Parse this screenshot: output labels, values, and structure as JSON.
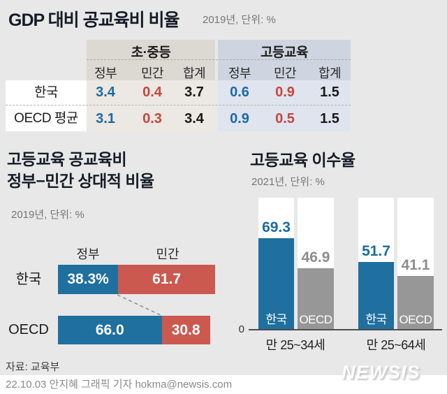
{
  "header": {
    "title": "GDP 대비 공교육비 비율",
    "subtitle": "2019년, 단위: %"
  },
  "table": {
    "groups": [
      {
        "label": "초·중등"
      },
      {
        "label": "고등교육"
      }
    ],
    "subheaders": [
      "정부",
      "민간",
      "합계",
      "정부",
      "민간",
      "합계"
    ],
    "rows": [
      {
        "label": "한국",
        "values": [
          "3.4",
          "0.4",
          "3.7",
          "0.6",
          "0.9",
          "1.5"
        ]
      },
      {
        "label": "OECD 평균",
        "values": [
          "3.1",
          "0.3",
          "3.4",
          "0.9",
          "0.5",
          "1.5"
        ]
      }
    ]
  },
  "left_chart": {
    "title": "고등교육 공교육비\n정부−민간 상대적 비율",
    "subtitle": "2019년, 단위: %",
    "gov_header": "정부",
    "priv_header": "민간",
    "rows": [
      {
        "label": "한국",
        "gov_label": "38.3%",
        "gov_pct": 38.3,
        "priv_label": "61.7",
        "priv_pct": 61.7
      },
      {
        "label": "OECD",
        "gov_label": "66.0",
        "gov_pct": 66.0,
        "priv_label": "30.8",
        "priv_pct": 30.8
      }
    ],
    "source": "자료: 교육부"
  },
  "right_chart": {
    "title": "고등교육 이수율",
    "subtitle": "2021년, 단위: %",
    "zero_label": "0",
    "groups": [
      {
        "label": "만 25~34세",
        "bars": [
          {
            "name": "한국",
            "value_label": "69.3",
            "pct": 69.3
          },
          {
            "name": "OECD",
            "value_label": "46.9",
            "pct": 46.9
          }
        ]
      },
      {
        "label": "만 25~64세",
        "bars": [
          {
            "name": "한국",
            "value_label": "51.7",
            "pct": 51.7
          },
          {
            "name": "OECD",
            "value_label": "41.1",
            "pct": 41.1
          }
        ]
      }
    ]
  },
  "footer": {
    "credit": "22.10.03 안지혜 그래픽 기자 hokma@newsis.com",
    "logo": "NEWSIS"
  },
  "colors": {
    "background": "#e8e8e8",
    "blue": "#1f6f9f",
    "red": "#cb594f",
    "gray": "#979797",
    "table_blue_text": "#1b6aa3",
    "table_red_text": "#c5473d"
  },
  "chart_data": [
    {
      "type": "table",
      "title": "GDP 대비 공교육비 비율",
      "subtitle": "2019년, 단위: %",
      "column_groups": [
        "초·중등",
        "고등교육"
      ],
      "columns": [
        "정부",
        "민간",
        "합계",
        "정부",
        "민간",
        "합계"
      ],
      "rows": [
        {
          "label": "한국",
          "values": [
            3.4,
            0.4,
            3.7,
            0.6,
            0.9,
            1.5
          ]
        },
        {
          "label": "OECD 평균",
          "values": [
            3.1,
            0.3,
            3.4,
            0.9,
            0.5,
            1.5
          ]
        }
      ]
    },
    {
      "type": "bar",
      "variant": "horizontal-stacked",
      "title": "고등교육 공교육비 정부−민간 상대적 비율",
      "subtitle": "2019년, 단위: %",
      "categories": [
        "한국",
        "OECD"
      ],
      "series": [
        {
          "name": "정부",
          "values": [
            38.3,
            66.0
          ],
          "color": "#1f6f9f"
        },
        {
          "name": "민간",
          "values": [
            61.7,
            30.8
          ],
          "color": "#cb594f"
        }
      ],
      "xlim": [
        0,
        100
      ],
      "source": "자료: 교육부"
    },
    {
      "type": "bar",
      "variant": "grouped-vertical",
      "title": "고등교육 이수율",
      "subtitle": "2021년, 단위: %",
      "categories": [
        "만 25~34세",
        "만 25~64세"
      ],
      "series": [
        {
          "name": "한국",
          "values": [
            69.3,
            51.7
          ],
          "color": "#1f6f9f"
        },
        {
          "name": "OECD",
          "values": [
            46.9,
            41.1
          ],
          "color": "#979797"
        }
      ],
      "ylim": [
        0,
        100
      ],
      "ylabel": "",
      "grid": false
    }
  ]
}
